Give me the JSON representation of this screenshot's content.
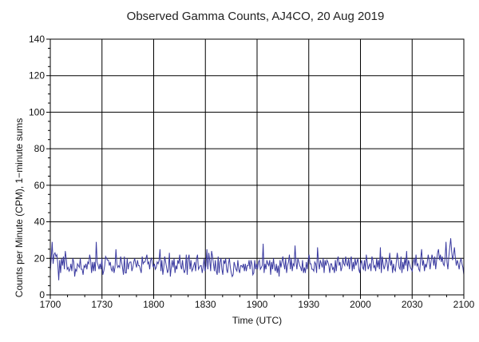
{
  "chart_data": {
    "type": "line",
    "title": "Observed Gamma Counts, AJ4CO, 20 Aug 2019",
    "xlabel": "Time (UTC)",
    "ylabel": "Counts per Minute (CPM), 1−minute sums",
    "x_tick_labels": [
      "1700",
      "1730",
      "1800",
      "1830",
      "1900",
      "1930",
      "2000",
      "2030",
      "2100"
    ],
    "x_range_minutes": [
      0,
      240
    ],
    "y_ticks": [
      0,
      20,
      40,
      60,
      80,
      100,
      120,
      140
    ],
    "ylim": [
      0,
      140
    ],
    "grid": true,
    "line_color": "#3a3aa0",
    "series": [
      {
        "name": "CPM",
        "values": [
          13,
          20,
          29,
          17,
          22,
          23,
          21,
          22,
          17,
          8,
          19,
          12,
          20,
          16,
          21,
          14,
          24,
          20,
          14,
          15,
          13,
          14,
          17,
          13,
          20,
          18,
          10,
          14,
          13,
          17,
          16,
          15,
          20,
          14,
          14,
          11,
          16,
          15,
          17,
          14,
          18,
          17,
          22,
          19,
          12,
          18,
          13,
          18,
          13,
          29,
          18,
          16,
          14,
          17,
          14,
          20,
          11,
          13,
          16,
          21,
          20,
          19,
          19,
          16,
          18,
          14,
          13,
          16,
          12,
          15,
          25,
          17,
          15,
          16,
          15,
          21,
          18,
          15,
          11,
          21,
          12,
          12,
          20,
          14,
          17,
          18,
          18,
          13,
          15,
          18,
          20,
          17,
          15,
          19,
          16,
          16,
          14,
          12,
          21,
          17,
          18,
          18,
          20,
          22,
          17,
          18,
          14,
          19,
          20,
          17,
          15,
          17,
          14,
          15,
          18,
          17,
          19,
          25,
          13,
          19,
          11,
          15,
          21,
          18,
          15,
          12,
          14,
          23,
          10,
          15,
          19,
          15,
          20,
          12,
          16,
          14,
          19,
          17,
          22,
          16,
          14,
          19,
          14,
          12,
          14,
          22,
          11,
          20,
          22,
          14,
          19,
          13,
          14,
          16,
          18,
          13,
          20,
          22,
          14,
          15,
          16,
          16,
          12,
          15,
          20,
          13,
          16,
          25,
          14,
          23,
          19,
          13,
          24,
          21,
          17,
          13,
          19,
          13,
          11,
          21,
          12,
          18,
          20,
          14,
          11,
          19,
          17,
          20,
          14,
          12,
          17,
          20,
          15,
          12,
          10,
          11,
          18,
          16,
          14,
          13,
          19,
          14,
          12,
          16,
          16,
          15,
          17,
          13,
          17,
          13,
          16,
          16,
          19,
          14,
          19,
          17,
          11,
          12,
          19,
          14,
          17,
          14,
          18,
          19,
          14,
          15,
          16,
          28,
          12,
          17,
          14,
          19,
          17,
          16,
          19,
          11,
          18,
          14,
          20,
          15,
          13,
          17,
          12,
          16,
          10,
          19,
          15,
          18,
          21,
          17,
          14,
          20,
          12,
          16,
          18,
          22,
          14,
          20,
          13,
          17,
          16,
          27,
          18,
          14,
          20,
          18,
          16,
          15,
          13,
          19,
          12,
          15,
          12,
          18,
          14,
          19,
          22,
          17,
          17,
          14,
          14,
          13,
          18,
          17,
          12,
          26,
          18,
          14,
          19,
          17,
          15,
          20,
          12,
          19,
          16,
          19,
          18,
          16,
          12,
          17,
          17,
          14,
          15,
          12,
          19,
          13,
          19,
          21,
          16,
          18,
          13,
          15,
          20,
          17,
          16,
          21,
          17,
          16,
          20,
          14,
          19,
          21,
          13,
          18,
          14,
          20,
          16,
          18,
          20,
          14,
          12,
          17,
          19,
          15,
          14,
          19,
          13,
          22,
          18,
          14,
          16,
          17,
          13,
          21,
          19,
          15,
          16,
          13,
          20,
          15,
          19,
          14,
          26,
          12,
          21,
          17,
          14,
          16,
          20,
          18,
          13,
          18,
          23,
          16,
          19,
          12,
          17,
          14,
          13,
          18,
          23,
          19,
          15,
          14,
          21,
          12,
          18,
          14,
          20,
          16,
          24,
          13,
          19,
          17,
          15,
          14,
          13,
          18,
          20,
          16,
          22,
          16,
          17,
          14,
          13,
          20,
          25,
          16,
          19,
          13,
          17,
          15,
          18,
          22,
          19,
          14,
          18,
          22,
          20,
          16,
          21,
          14,
          19,
          23,
          25,
          19,
          22,
          18,
          21,
          17,
          16,
          20,
          29,
          18,
          14,
          21,
          26,
          31,
          24,
          19,
          22,
          26,
          20,
          16,
          19,
          17,
          14,
          18,
          20,
          17,
          15,
          11
        ]
      }
    ]
  }
}
